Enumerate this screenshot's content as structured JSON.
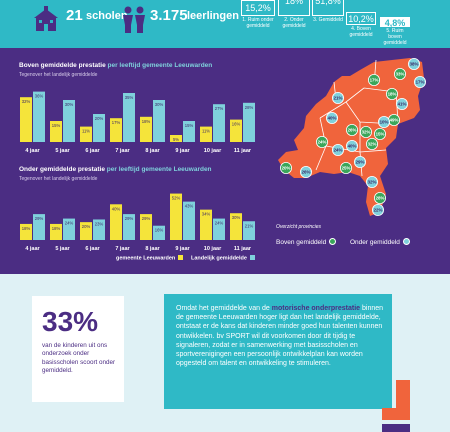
{
  "top": {
    "schools_count": "21",
    "schools_label": "scholen",
    "students_count": "3.175",
    "students_label": "leerlingen",
    "stats": [
      {
        "value": "15,2%",
        "label": "1. Ruim onder gemiddeld",
        "style": "outline"
      },
      {
        "value": "18%",
        "label": "2. Onder gemiddeld",
        "style": "outline"
      },
      {
        "value": "51,8%",
        "label": "3. Gemiddeld",
        "style": "outline"
      },
      {
        "value": "10,2%",
        "label": "4. Boven gemiddeld",
        "style": "outline"
      },
      {
        "value": "4,8%",
        "label": "5. Ruim boven gemiddeld",
        "style": "filled"
      }
    ]
  },
  "chart1": {
    "title_hl": "Boven gemiddelde prestatie",
    "title_rest": " per leeftijd gemeente Leeuwarden",
    "subtitle": "Tegenover het landelijk gemiddelde"
  },
  "chart2": {
    "title_hl": "Onder gemiddelde prestatie",
    "title_rest": " per leeftijd gemeente Leeuwarden",
    "subtitle": "Tegenover het landelijk gemiddelde"
  },
  "legend": {
    "leeuwarden": "gemeente Leeuwarden",
    "landelijk": "Landelijk gemiddelde"
  },
  "chart_data": [
    {
      "type": "bar",
      "title": "Boven gemiddelde prestatie per leeftijd gemeente Leeuwarden",
      "subtitle": "Tegenover het landelijk gemiddelde",
      "categories": [
        "4 jaar",
        "5 jaar",
        "6 jaar",
        "7 jaar",
        "8 jaar",
        "9 jaar",
        "10 jaar",
        "11 jaar"
      ],
      "series": [
        {
          "name": "gemeente Leeuwarden",
          "color": "#f5e43a",
          "values": [
            32,
            15,
            11,
            17,
            18,
            5,
            11,
            16
          ]
        },
        {
          "name": "Landelijk gemiddelde",
          "color": "#7fd1dc",
          "values": [
            36,
            30,
            20,
            35,
            30,
            15,
            27,
            28
          ]
        }
      ],
      "labels": [
        [
          "32%",
          "15%",
          "11%",
          "17%",
          "18%",
          "5%",
          "11%",
          "16%"
        ],
        [
          "36%",
          "30%",
          "20%",
          "35%",
          "30%",
          "15%",
          "27%",
          "28%"
        ]
      ],
      "ylim": [
        0,
        40
      ]
    },
    {
      "type": "bar",
      "title": "Onder gemiddelde prestatie per leeftijd gemeente Leeuwarden",
      "subtitle": "Tegenover het landelijk gemiddelde",
      "categories": [
        "4 jaar",
        "5 jaar",
        "6 jaar",
        "7 jaar",
        "8 jaar",
        "9 jaar",
        "10 jaar",
        "11 jaar"
      ],
      "series": [
        {
          "name": "gemeente Leeuwarden",
          "color": "#f5e43a",
          "values": [
            18,
            18,
            20,
            40,
            29,
            52,
            34,
            30
          ]
        },
        {
          "name": "Landelijk gemiddelde",
          "color": "#7fd1dc",
          "values": [
            29,
            24,
            23,
            29,
            16,
            43,
            24,
            21
          ]
        }
      ],
      "labels": [
        [
          "18%",
          "18%",
          "20%",
          "40%",
          "29%",
          "52%",
          "34%",
          "30%"
        ],
        [
          "29%",
          "24%",
          "23%",
          "29%",
          "16%",
          "43%",
          "24%",
          "21%"
        ]
      ],
      "ylim": [
        0,
        56
      ]
    }
  ],
  "map": {
    "title": "Overzicht provincies",
    "legend_above": "Boven gemiddeld",
    "legend_below": "Onder gemiddeld",
    "above_color": "#3aa65a",
    "below_color": "#7fd1dc",
    "land_color": "#f0643c",
    "badges": [
      {
        "label": "17%",
        "kind": "above"
      },
      {
        "label": "33%",
        "kind": "above"
      },
      {
        "label": "38%",
        "kind": "below"
      },
      {
        "label": "17%",
        "kind": "below"
      },
      {
        "label": "18%",
        "kind": "above"
      },
      {
        "label": "41%",
        "kind": "below"
      },
      {
        "label": "21%",
        "kind": "below"
      },
      {
        "label": "40%",
        "kind": "below"
      },
      {
        "label": "49%",
        "kind": "above"
      },
      {
        "label": "10%",
        "kind": "below"
      },
      {
        "label": "15%",
        "kind": "above"
      },
      {
        "label": "32%",
        "kind": "above"
      },
      {
        "label": "26%",
        "kind": "above"
      },
      {
        "label": "24%",
        "kind": "above"
      },
      {
        "label": "24%",
        "kind": "below"
      },
      {
        "label": "40%",
        "kind": "below"
      },
      {
        "label": "32%",
        "kind": "above"
      },
      {
        "label": "29%",
        "kind": "below"
      },
      {
        "label": "25%",
        "kind": "above"
      },
      {
        "label": "32%",
        "kind": "below"
      },
      {
        "label": "26%",
        "kind": "below"
      },
      {
        "label": "20%",
        "kind": "above"
      },
      {
        "label": "28%",
        "kind": "above"
      },
      {
        "label": "22%",
        "kind": "below"
      }
    ]
  },
  "bottom": {
    "percent": "33%",
    "percent_text": "van de kinderen uit ons onderzoek onder basisscholen scoort onder gemiddeld.",
    "info_pre": "Omdat het gemiddelde van de ",
    "info_bold": "motorische onderprestatie",
    "info_post": " binnen de gemeente Leeuwarden hoger ligt dan het landelijk gemiddelde, ontstaat er de kans dat kinderen minder goed hun talenten kunnen ontwikkelen. bv SPORT wil dit voorkomen door dit tijdig te signaleren, zodat er in samenwerking met basisscholen en sportverenigingen een persoonlijk ontwikkelplan kan worden opgesteld om talent en ontwikkeling te stimuleren."
  }
}
